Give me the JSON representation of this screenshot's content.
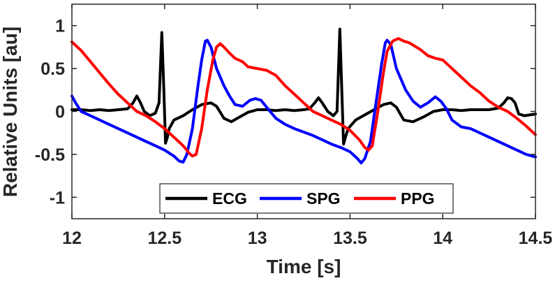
{
  "chart_data": {
    "type": "line",
    "title": "",
    "xlabel": "Time [s]",
    "ylabel": "Relative Units [au]",
    "xlim": [
      12,
      14.5
    ],
    "ylim": [
      -1.25,
      1.25
    ],
    "xticks": [
      12,
      12.5,
      13,
      13.5,
      14,
      14.5
    ],
    "xtick_labels": [
      "12",
      "12.5",
      "13",
      "13.5",
      "14",
      "14.5"
    ],
    "yticks": [
      1,
      0.5,
      0,
      -0.5,
      -1
    ],
    "ytick_labels": [
      "1",
      "0.5",
      "0",
      "-0.5",
      "-1"
    ],
    "grid": false,
    "legend_position": "bottom-center",
    "legend_orientation": "horizontal",
    "series": [
      {
        "name": "ECG",
        "color": "#000000",
        "x": [
          12.0,
          12.05,
          12.1,
          12.15,
          12.2,
          12.25,
          12.3,
          12.33,
          12.35,
          12.37,
          12.39,
          12.42,
          12.45,
          12.47,
          12.485,
          12.495,
          12.505,
          12.515,
          12.525,
          12.55,
          12.6,
          12.65,
          12.7,
          12.75,
          12.78,
          12.82,
          12.86,
          12.9,
          12.95,
          13.0,
          13.05,
          13.1,
          13.15,
          13.2,
          13.25,
          13.28,
          13.31,
          13.33,
          13.35,
          13.38,
          13.41,
          13.43,
          13.445,
          13.455,
          13.465,
          13.475,
          13.49,
          13.53,
          13.58,
          13.63,
          13.68,
          13.72,
          13.75,
          13.79,
          13.84,
          13.9,
          13.95,
          14.0,
          14.05,
          14.1,
          14.15,
          14.2,
          14.25,
          14.3,
          14.33,
          14.35,
          14.37,
          14.39,
          14.41,
          14.44,
          14.47,
          14.5
        ],
        "y": [
          0.02,
          0.02,
          0.01,
          0.02,
          0.01,
          0.02,
          0.03,
          0.1,
          0.18,
          0.1,
          0.0,
          -0.05,
          -0.02,
          0.1,
          0.92,
          0.3,
          -0.37,
          -0.3,
          -0.2,
          -0.1,
          -0.05,
          0.02,
          0.08,
          0.1,
          0.06,
          -0.08,
          -0.12,
          -0.07,
          -0.01,
          0.02,
          0.02,
          0.01,
          0.02,
          0.01,
          0.02,
          0.03,
          0.1,
          0.16,
          0.1,
          0.0,
          -0.05,
          0.0,
          0.96,
          0.3,
          -0.38,
          -0.3,
          -0.2,
          -0.1,
          -0.04,
          0.02,
          0.08,
          0.1,
          0.05,
          -0.1,
          -0.12,
          -0.06,
          0.0,
          0.02,
          0.02,
          0.01,
          0.02,
          0.02,
          0.02,
          0.04,
          0.1,
          0.16,
          0.15,
          0.1,
          -0.03,
          -0.05,
          -0.04,
          -0.03
        ]
      },
      {
        "name": "SPG",
        "color": "#0000ff",
        "x": [
          12.0,
          12.02,
          12.05,
          12.1,
          12.2,
          12.3,
          12.4,
          12.45,
          12.5,
          12.55,
          12.58,
          12.6,
          12.62,
          12.65,
          12.68,
          12.7,
          12.72,
          12.73,
          12.75,
          12.78,
          12.82,
          12.85,
          12.88,
          12.92,
          12.96,
          12.99,
          13.02,
          13.05,
          13.1,
          13.15,
          13.2,
          13.3,
          13.4,
          13.45,
          13.5,
          13.54,
          13.56,
          13.58,
          13.61,
          13.64,
          13.67,
          13.69,
          13.7,
          13.72,
          13.75,
          13.8,
          13.84,
          13.88,
          13.92,
          13.96,
          13.99,
          14.02,
          14.05,
          14.1,
          14.15,
          14.2,
          14.3,
          14.4,
          14.45,
          14.5
        ],
        "y": [
          0.18,
          0.1,
          0.0,
          -0.05,
          -0.15,
          -0.25,
          -0.35,
          -0.4,
          -0.45,
          -0.52,
          -0.58,
          -0.59,
          -0.5,
          -0.2,
          0.3,
          0.6,
          0.82,
          0.83,
          0.75,
          0.5,
          0.3,
          0.18,
          0.08,
          0.06,
          0.13,
          0.15,
          0.13,
          0.05,
          -0.08,
          -0.15,
          -0.2,
          -0.28,
          -0.38,
          -0.42,
          -0.47,
          -0.55,
          -0.6,
          -0.55,
          -0.35,
          0.1,
          0.55,
          0.8,
          0.83,
          0.78,
          0.5,
          0.25,
          0.12,
          0.05,
          0.1,
          0.17,
          0.12,
          0.03,
          -0.1,
          -0.18,
          -0.2,
          -0.25,
          -0.35,
          -0.45,
          -0.5,
          -0.53
        ]
      },
      {
        "name": "PPG",
        "color": "#ff0000",
        "x": [
          12.0,
          12.05,
          12.1,
          12.15,
          12.2,
          12.25,
          12.3,
          12.35,
          12.4,
          12.45,
          12.5,
          12.55,
          12.6,
          12.63,
          12.65,
          12.67,
          12.7,
          12.73,
          12.76,
          12.78,
          12.8,
          12.82,
          12.85,
          12.88,
          12.92,
          12.95,
          13.0,
          13.05,
          13.1,
          13.15,
          13.2,
          13.25,
          13.3,
          13.35,
          13.4,
          13.45,
          13.5,
          13.55,
          13.58,
          13.6,
          13.62,
          13.65,
          13.68,
          13.7,
          13.73,
          13.76,
          13.79,
          13.82,
          13.85,
          13.88,
          13.92,
          13.96,
          14.0,
          14.05,
          14.1,
          14.15,
          14.2,
          14.25,
          14.3,
          14.35,
          14.4,
          14.45,
          14.5
        ],
        "y": [
          0.81,
          0.71,
          0.58,
          0.45,
          0.32,
          0.2,
          0.1,
          0.0,
          -0.05,
          -0.12,
          -0.2,
          -0.3,
          -0.4,
          -0.48,
          -0.52,
          -0.5,
          -0.2,
          0.25,
          0.6,
          0.75,
          0.79,
          0.75,
          0.68,
          0.62,
          0.58,
          0.52,
          0.5,
          0.48,
          0.42,
          0.3,
          0.2,
          0.1,
          0.0,
          -0.05,
          -0.1,
          -0.15,
          -0.22,
          -0.33,
          -0.42,
          -0.45,
          -0.4,
          0.0,
          0.45,
          0.7,
          0.82,
          0.85,
          0.82,
          0.8,
          0.76,
          0.72,
          0.65,
          0.62,
          0.6,
          0.5,
          0.4,
          0.3,
          0.22,
          0.12,
          0.05,
          0.0,
          -0.08,
          -0.17,
          -0.27
        ]
      }
    ]
  }
}
